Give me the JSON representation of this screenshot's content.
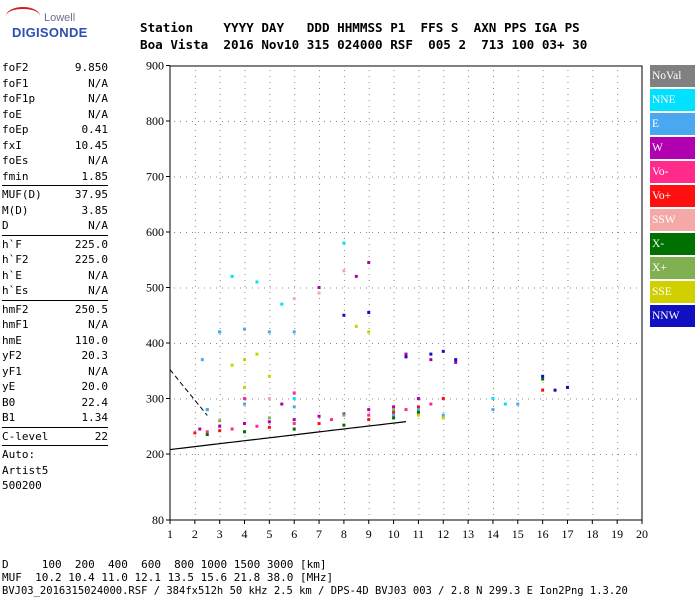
{
  "logo": {
    "line1": "Lowell",
    "line2": "DIGISONDE"
  },
  "header": {
    "labels": "Station    YYYY DAY   DDD HHMMSS P1  FFS S  AXN PPS IGA PS",
    "values": "Boa Vista  2016 Nov10 315 024000 RSF  005 2  713 100 03+ 30"
  },
  "params": [
    {
      "name": "foF2",
      "value": "9.850"
    },
    {
      "name": "foF1",
      "value": "N/A"
    },
    {
      "name": "foF1p",
      "value": "N/A"
    },
    {
      "name": "foE",
      "value": "N/A"
    },
    {
      "name": "foEp",
      "value": "0.41"
    },
    {
      "name": "fxI",
      "value": "10.45"
    },
    {
      "name": "foEs",
      "value": "N/A"
    },
    {
      "name": "fmin",
      "value": "1.85"
    },
    {
      "sep": true
    },
    {
      "name": "MUF(D)",
      "value": "37.95"
    },
    {
      "name": "M(D)",
      "value": "3.85"
    },
    {
      "name": "D",
      "value": "N/A"
    },
    {
      "sep": true
    },
    {
      "name": "h`F",
      "value": "225.0"
    },
    {
      "name": "h`F2",
      "value": "225.0"
    },
    {
      "name": "h`E",
      "value": "N/A"
    },
    {
      "name": "h`Es",
      "value": "N/A"
    },
    {
      "sep": true
    },
    {
      "name": "hmF2",
      "value": "250.5"
    },
    {
      "name": "hmF1",
      "value": "N/A"
    },
    {
      "name": "hmE",
      "value": "110.0"
    },
    {
      "name": "yF2",
      "value": "20.3"
    },
    {
      "name": "yF1",
      "value": "N/A"
    },
    {
      "name": "yE",
      "value": "20.0"
    },
    {
      "name": "B0",
      "value": "22.4"
    },
    {
      "name": "B1",
      "value": "1.34"
    },
    {
      "sep": true
    },
    {
      "name": "C-level",
      "value": "22"
    },
    {
      "sep": true
    },
    {
      "name": "Auto:",
      "value": ""
    },
    {
      "name": "Artist5",
      "value": ""
    },
    {
      "name": "500200",
      "value": ""
    }
  ],
  "legend": [
    {
      "label": "NoVal",
      "color": "#808080"
    },
    {
      "label": "NNE",
      "color": "#00e0ff"
    },
    {
      "label": "E",
      "color": "#4aa8f0"
    },
    {
      "label": "W",
      "color": "#b000b0"
    },
    {
      "label": "Vo-",
      "color": "#ff2a8a"
    },
    {
      "label": "Vo+",
      "color": "#ff1010"
    },
    {
      "label": "SSW",
      "color": "#f4a8a8"
    },
    {
      "label": "X-",
      "color": "#007000"
    },
    {
      "label": "X+",
      "color": "#80b050"
    },
    {
      "label": "SSE",
      "color": "#d0d000"
    },
    {
      "label": "NNW",
      "color": "#1010c0"
    }
  ],
  "chart_data": {
    "type": "scatter",
    "xlabel": "",
    "ylabel": "",
    "xlim": [
      1,
      20
    ],
    "ylim": [
      80,
      900
    ],
    "xticks": [
      "1",
      "2",
      "3",
      "4",
      "5",
      "6",
      "7",
      "8",
      "9",
      "10",
      "11",
      "12",
      "13",
      "14",
      "15",
      "16",
      "17",
      "18",
      "19",
      "20"
    ],
    "yticks": [
      "80",
      "200",
      "300",
      "400",
      "500",
      "600",
      "700",
      "800",
      "900"
    ],
    "series": [
      {
        "name": "W",
        "color": "#b000b0",
        "points": [
          [
            2.2,
            245
          ],
          [
            3,
            250
          ],
          [
            4,
            255
          ],
          [
            5,
            258
          ],
          [
            6,
            262
          ],
          [
            7,
            268
          ],
          [
            8,
            272
          ],
          [
            9,
            280
          ],
          [
            10,
            285
          ],
          [
            11,
            300
          ],
          [
            5.5,
            290
          ],
          [
            8.5,
            520
          ],
          [
            9,
            545
          ],
          [
            7,
            500
          ],
          [
            10.5,
            380
          ],
          [
            11.5,
            370
          ],
          [
            12.5,
            365
          ]
        ]
      },
      {
        "name": "Vo-",
        "color": "#ff2a8a",
        "points": [
          [
            2.5,
            240
          ],
          [
            3.5,
            245
          ],
          [
            4.5,
            250
          ],
          [
            6,
            255
          ],
          [
            7.5,
            262
          ],
          [
            9,
            270
          ],
          [
            10.5,
            280
          ],
          [
            11.5,
            290
          ],
          [
            4,
            300
          ],
          [
            6,
            310
          ]
        ]
      },
      {
        "name": "Vo+",
        "color": "#ff1010",
        "points": [
          [
            2,
            238
          ],
          [
            3,
            242
          ],
          [
            5,
            248
          ],
          [
            7,
            255
          ],
          [
            9,
            262
          ],
          [
            10,
            275
          ],
          [
            11,
            285
          ],
          [
            12,
            300
          ],
          [
            16,
            315
          ]
        ]
      },
      {
        "name": "NNE",
        "color": "#00e0ff",
        "points": [
          [
            2.5,
            280
          ],
          [
            3.5,
            520
          ],
          [
            4.5,
            510
          ],
          [
            5.5,
            470
          ],
          [
            3,
            420
          ],
          [
            6,
            300
          ],
          [
            8,
            580
          ],
          [
            14,
            300
          ],
          [
            14.5,
            290
          ]
        ]
      },
      {
        "name": "E",
        "color": "#4aa8f0",
        "points": [
          [
            2.3,
            370
          ],
          [
            3,
            420
          ],
          [
            4,
            425
          ],
          [
            5,
            420
          ],
          [
            6,
            420
          ],
          [
            2.5,
            280
          ],
          [
            4,
            290
          ],
          [
            6,
            285
          ],
          [
            10,
            270
          ],
          [
            11,
            280
          ],
          [
            12,
            270
          ],
          [
            14,
            280
          ],
          [
            15,
            290
          ]
        ]
      },
      {
        "name": "NNW",
        "color": "#1010c0",
        "points": [
          [
            8,
            450
          ],
          [
            9,
            455
          ],
          [
            10.5,
            375
          ],
          [
            11.5,
            380
          ],
          [
            12,
            385
          ],
          [
            12.5,
            370
          ],
          [
            16,
            340
          ],
          [
            16.5,
            315
          ],
          [
            17,
            320
          ]
        ]
      },
      {
        "name": "X-",
        "color": "#007000",
        "points": [
          [
            2.5,
            235
          ],
          [
            4,
            240
          ],
          [
            6,
            245
          ],
          [
            8,
            252
          ],
          [
            10,
            265
          ],
          [
            11,
            275
          ],
          [
            16,
            335
          ]
        ]
      },
      {
        "name": "X+",
        "color": "#80b050",
        "points": [
          [
            3,
            260
          ],
          [
            5,
            265
          ],
          [
            8,
            270
          ],
          [
            10,
            280
          ]
        ]
      },
      {
        "name": "SSE",
        "color": "#d0d000",
        "points": [
          [
            3.5,
            360
          ],
          [
            4,
            370
          ],
          [
            4.5,
            380
          ],
          [
            5,
            340
          ],
          [
            4,
            320
          ],
          [
            8.5,
            430
          ],
          [
            9,
            420
          ],
          [
            11,
            270
          ],
          [
            12,
            265
          ]
        ]
      },
      {
        "name": "SSW",
        "color": "#f4a8a8",
        "points": [
          [
            6,
            480
          ],
          [
            7,
            490
          ],
          [
            8,
            530
          ],
          [
            5,
            300
          ]
        ]
      }
    ]
  },
  "footer": {
    "line1": "D     100  200  400  600  800 1000 1500 3000 [km]",
    "line2": "MUF  10.2 10.4 11.0 12.1 13.5 15.6 21.8 38.0 [MHz]",
    "line3": "BVJ03_2016315024000.RSF / 384fx512h 50 kHz 2.5 km / DPS-4D BVJ03 003 / 2.8 N 299.3 E Ion2Png 1.3.20"
  }
}
